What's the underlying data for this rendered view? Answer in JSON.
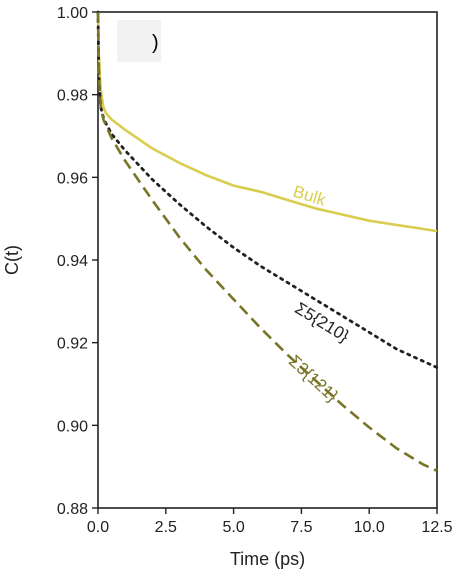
{
  "chart_data": {
    "type": "line",
    "title": "",
    "xlabel": "Time (ps)",
    "ylabel": "C(t)",
    "xlim": [
      0,
      12.5
    ],
    "ylim": [
      0.88,
      1.0
    ],
    "xticks": [
      0.0,
      2.5,
      5.0,
      7.5,
      10.0,
      12.5
    ],
    "xtick_labels": [
      "0.0",
      "2.5",
      "5.0",
      "7.5",
      "10.0",
      "12.5"
    ],
    "yticks": [
      0.88,
      0.9,
      0.92,
      0.94,
      0.96,
      0.98,
      1.0
    ],
    "ytick_labels": [
      "0.88",
      "0.90",
      "0.92",
      "0.94",
      "0.96",
      "0.98",
      "1.00"
    ],
    "grid": false,
    "panel_tag": ")",
    "series": [
      {
        "name": "Bulk",
        "color": "#d9cc4e",
        "style": "solid",
        "x": [
          0,
          0.03,
          0.1,
          0.2,
          0.3,
          0.5,
          1.0,
          2.0,
          3.0,
          4.0,
          5.0,
          6.0,
          7.0,
          8.0,
          9.0,
          10.0,
          11.0,
          12.0,
          12.5
        ],
        "y": [
          1.0,
          0.99,
          0.981,
          0.977,
          0.9755,
          0.974,
          0.9715,
          0.967,
          0.9635,
          0.9605,
          0.958,
          0.9565,
          0.9545,
          0.9525,
          0.951,
          0.9495,
          0.9485,
          0.9475,
          0.947
        ],
        "label_x": 7.2,
        "label_y": 0.9565
      },
      {
        "name": "Σ5{210}",
        "color": "#222222",
        "style": "dotted",
        "x": [
          0,
          0.03,
          0.1,
          0.2,
          0.3,
          0.5,
          1.0,
          2.0,
          3.0,
          4.0,
          5.0,
          6.0,
          7.0,
          8.0,
          9.0,
          10.0,
          11.0,
          12.0,
          12.5
        ],
        "y": [
          1.0,
          0.985,
          0.977,
          0.9745,
          0.973,
          0.9705,
          0.9665,
          0.9595,
          0.9535,
          0.948,
          0.943,
          0.9385,
          0.9345,
          0.9305,
          0.9265,
          0.9225,
          0.9185,
          0.9155,
          0.914
        ],
        "label_x": 7.3,
        "label_y": 0.9285
      },
      {
        "name": "Σ3{121}",
        "color": "#7a7428",
        "style": "dashed",
        "x": [
          0,
          0.03,
          0.1,
          0.2,
          0.3,
          0.5,
          1.0,
          2.0,
          3.0,
          4.0,
          5.0,
          6.0,
          7.0,
          8.0,
          9.0,
          10.0,
          11.0,
          12.0,
          12.5
        ],
        "y": [
          1.0,
          0.985,
          0.977,
          0.974,
          0.9725,
          0.9695,
          0.964,
          0.9545,
          0.9455,
          0.9375,
          0.9305,
          0.9235,
          0.917,
          0.911,
          0.905,
          0.8995,
          0.8945,
          0.8905,
          0.889
        ],
        "label_x": 7.1,
        "label_y": 0.916
      }
    ]
  }
}
